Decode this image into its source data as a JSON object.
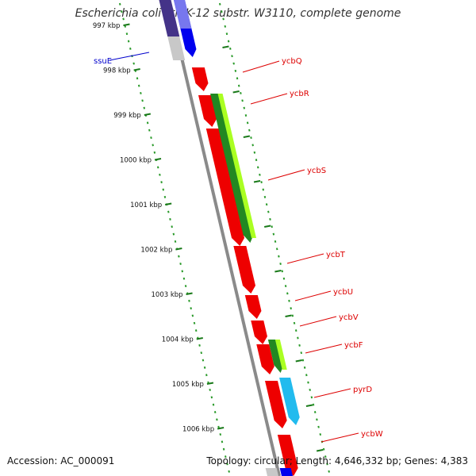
{
  "title": "Escherichia coli str. K-12 substr. W3110, complete genome",
  "accession": "Accession: AC_000091",
  "summary": "Topology: circular; Length: 4,646,332 bp; Genes: 4,383",
  "colors": {
    "backbone": "#8a8a8a",
    "tick_major": "#1a7a1a",
    "tick_minor": "#2a9a2a",
    "gene_red": "#ee0000",
    "gene_green_dark": "#228822",
    "gene_green_light": "#aaff22",
    "gene_cyan": "#22bbee",
    "gene_blue": "#0000ee",
    "gene_navy": "#443388",
    "gene_grey": "#c8c8c8",
    "label_red": "#dd0000",
    "label_blue": "#0000cc"
  },
  "scale_labels": [
    "997 kbp",
    "998 kbp",
    "999 kbp",
    "1000 kbp",
    "1001 kbp",
    "1002 kbp",
    "1003 kbp",
    "1004 kbp",
    "1005 kbp",
    "1006 kbp"
  ],
  "gene_labels": [
    {
      "name": "ssuE",
      "color": "blue"
    },
    {
      "name": "ycbQ",
      "color": "red"
    },
    {
      "name": "ycbR",
      "color": "red"
    },
    {
      "name": "ycbS",
      "color": "red"
    },
    {
      "name": "ycbT",
      "color": "red"
    },
    {
      "name": "ycbU",
      "color": "red"
    },
    {
      "name": "ycbV",
      "color": "red"
    },
    {
      "name": "ycbF",
      "color": "red"
    },
    {
      "name": "pyrD",
      "color": "red"
    },
    {
      "name": "ycbW",
      "color": "red"
    }
  ]
}
